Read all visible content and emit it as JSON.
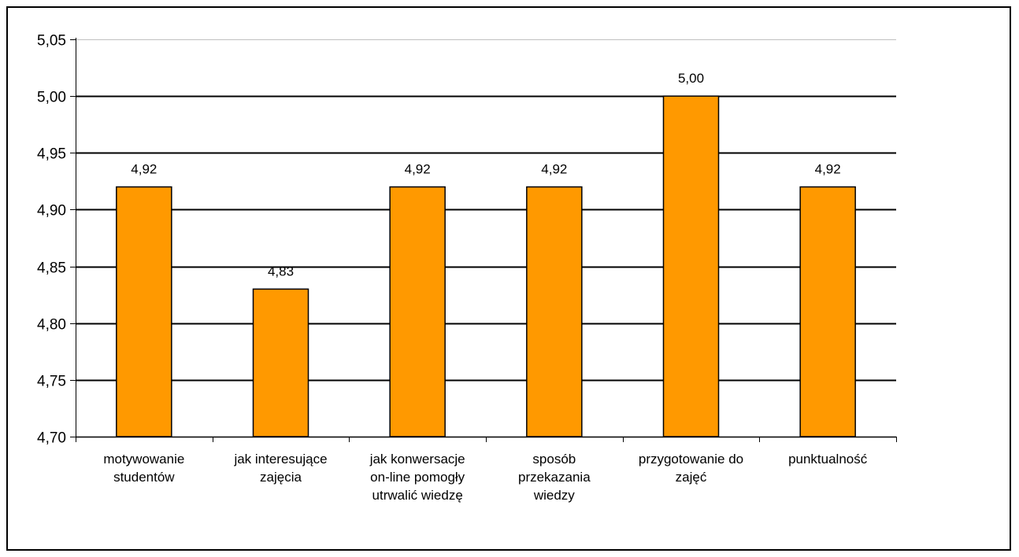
{
  "chart_data": {
    "type": "bar",
    "title": "",
    "xlabel": "",
    "ylabel": "",
    "categories": [
      [
        "motywowanie",
        "studentów"
      ],
      [
        "jak interesujące",
        "zajęcia"
      ],
      [
        "jak konwersacje",
        "on-line pomogły",
        "utrwalić wiedzę"
      ],
      [
        "sposób",
        "przekazania",
        "wiedzy"
      ],
      [
        "przygotowanie do",
        "zajęć"
      ],
      [
        "punktualność"
      ]
    ],
    "values": [
      4.92,
      4.83,
      4.92,
      4.92,
      5.0,
      4.92
    ],
    "data_labels": [
      "4,92",
      "4,83",
      "4,92",
      "4,92",
      "5,00",
      "4,92"
    ],
    "ylim": [
      4.7,
      5.05
    ],
    "yticks": [
      4.7,
      4.75,
      4.8,
      4.85,
      4.9,
      4.95,
      5.0,
      5.05
    ],
    "ytick_labels": [
      "4,70",
      "4,75",
      "4,80",
      "4,85",
      "4,90",
      "4,95",
      "5,00",
      "5,05"
    ],
    "grid": true,
    "legend": "none",
    "colors": {
      "bar_fill": "#FF9900",
      "bar_stroke": "#000000",
      "grid": "#000000",
      "top_grid": "#C0C0C0",
      "axis": "#000000"
    }
  }
}
